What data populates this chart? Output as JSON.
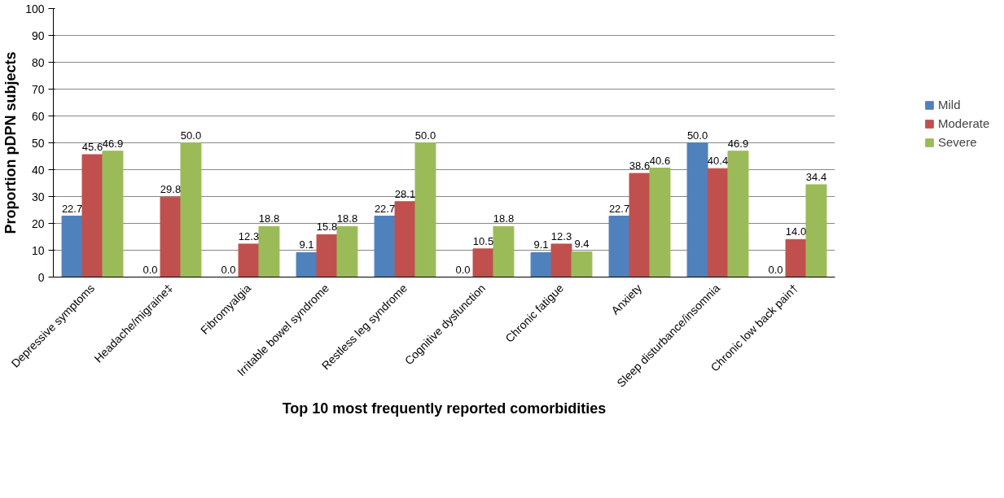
{
  "chart_data": {
    "type": "bar",
    "xlabel": "Top 10 most frequently reported comorbidities",
    "ylabel": "Proportion pDPN subjects",
    "categories": [
      "Depressive symptoms",
      "Headache/migraine‡",
      "Fibromyalgia",
      "Irritable bowel syndrome",
      "Restless leg syndrome",
      "Cognitive dysfunction",
      "Chronic fatigue",
      "Anxiety",
      "Sleep disturbance/insomnia",
      "Chronic low back pain†"
    ],
    "series": [
      {
        "name": "Mild",
        "color": "#4f81bd",
        "values": [
          22.7,
          0.0,
          0.0,
          9.1,
          22.7,
          0.0,
          9.1,
          22.7,
          50.0,
          0.0
        ],
        "value_labels": [
          "22.7",
          "0.0",
          "0.0",
          "9.1",
          "22.7",
          "0.0",
          "9.1",
          "22.7",
          "50.0",
          "0.0"
        ]
      },
      {
        "name": "Moderate",
        "color": "#c0504d",
        "values": [
          45.6,
          29.8,
          12.3,
          15.8,
          28.1,
          10.5,
          12.3,
          38.6,
          40.4,
          14.0
        ],
        "value_labels": [
          "45.6",
          "29.8",
          "12.3",
          "15.8",
          "28.1",
          "10.5",
          "12.3",
          "38.6",
          "40.4",
          "14.0"
        ]
      },
      {
        "name": "Severe",
        "color": "#9bbb59",
        "values": [
          46.9,
          50.0,
          18.8,
          18.8,
          50.0,
          18.8,
          9.4,
          40.6,
          46.9,
          34.4
        ],
        "value_labels": [
          "46.9",
          "50.0",
          "18.8",
          "18.8",
          "50.0",
          "18.8",
          "9.4",
          "40.6",
          "46.9",
          "34.4"
        ]
      }
    ],
    "ylim": [
      0,
      100
    ],
    "yticks": [
      0,
      10,
      20,
      30,
      40,
      50,
      60,
      70,
      80,
      90,
      100
    ],
    "grid": "y",
    "legend": "right",
    "data_labels": true
  }
}
